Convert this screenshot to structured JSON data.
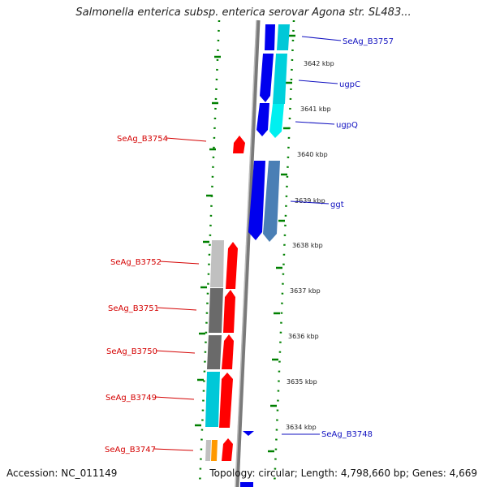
{
  "title": "Salmonella enterica subsp. enterica serovar Agona str. SL483...",
  "footer": {
    "accession": "Accession: NC_011149",
    "stats": "Topology: circular; Length: 4,798,660 bp; Genes: 4,669"
  },
  "kbp_labels": [
    "3642 kbp",
    "3641 kbp",
    "3640 kbp",
    "3639 kbp",
    "3638 kbp",
    "3637 kbp",
    "3636 kbp",
    "3635 kbp",
    "3634 kbp"
  ],
  "left_genes": [
    "SeAg_B3754",
    "SeAg_B3752",
    "SeAg_B3751",
    "SeAg_B3750",
    "SeAg_B3749",
    "SeAg_B3747"
  ],
  "right_genes": [
    "SeAg_B3757",
    "ugpC",
    "ugpQ",
    "ggt",
    "SeAg_B3748"
  ],
  "colors": {
    "forward_strand": "#ff0000",
    "reverse_strand": "#0000ee",
    "cyan": "#00d8e0",
    "steel_blue": "#4a7fb5",
    "grey_dark": "#6a6a6a",
    "grey_light": "#c0c0c0",
    "orange": "#ff9900",
    "tick_green": "#008000"
  }
}
